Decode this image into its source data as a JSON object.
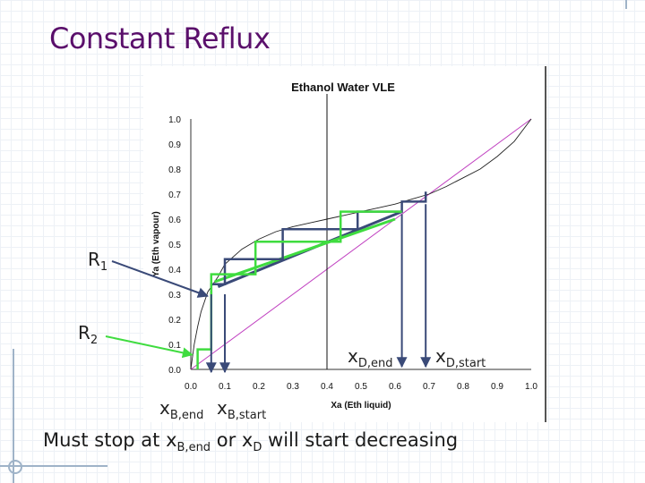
{
  "slide": {
    "title": "Constant Reflux",
    "footer": {
      "prefix": "Must stop at x",
      "sub1": "B,end",
      "middle": " or x",
      "sub2": "D",
      "suffix": " will start decreasing"
    }
  },
  "callouts": {
    "r1": {
      "base": "R",
      "sub": "1"
    },
    "r2": {
      "base": "R",
      "sub": "2"
    },
    "xd_end": {
      "base": "x",
      "sub": "D,end"
    },
    "xd_start": {
      "base": "x",
      "sub": "D,start"
    },
    "xb_end": {
      "base": "x",
      "sub": "B,end"
    },
    "xb_start": {
      "base": "x",
      "sub": "B,start"
    }
  },
  "chart_data": {
    "type": "line",
    "title": "Ethanol Water VLE",
    "xlabel": "Xa (Eth liquid)",
    "ylabel": "Ya (Eth vapour)",
    "xlim": [
      0,
      1
    ],
    "ylim": [
      0,
      1
    ],
    "xticks": [
      "0.0",
      "0.1",
      "0.2",
      "0.3",
      "0.4",
      "0.5",
      "0.6",
      "0.7",
      "0.8",
      "0.9",
      "1.0"
    ],
    "yticks": [
      "0.0",
      "0.1",
      "0.2",
      "0.3",
      "0.4",
      "0.5",
      "0.6",
      "0.7",
      "0.8",
      "0.9",
      "1.0"
    ],
    "grid": false,
    "colors": {
      "equilibrium": "#222222",
      "diagonal": "#c040c0",
      "start": "#3a4a78",
      "end": "#3fdc3f",
      "arrow": "#3a4a78",
      "callout_green": "#3fdc3f"
    },
    "series": [
      {
        "x": [
          0.0,
          0.01,
          0.02,
          0.03,
          0.05,
          0.08,
          0.1,
          0.15,
          0.2,
          0.25,
          0.3,
          0.35,
          0.4,
          0.45,
          0.5,
          0.55,
          0.6,
          0.65,
          0.7,
          0.75,
          0.8,
          0.85,
          0.9,
          0.95,
          1.0
        ],
        "y": [
          0.0,
          0.1,
          0.17,
          0.23,
          0.31,
          0.37,
          0.42,
          0.48,
          0.52,
          0.55,
          0.57,
          0.585,
          0.6,
          0.615,
          0.63,
          0.645,
          0.66,
          0.68,
          0.7,
          0.73,
          0.765,
          0.8,
          0.85,
          0.91,
          1.0
        ]
      },
      {
        "x": [
          0,
          1
        ],
        "y": [
          0,
          1
        ]
      }
    ],
    "operating_lines": [
      {
        "x": [
          0.08,
          0.62
        ],
        "y": [
          0.33,
          0.63
        ]
      },
      {
        "x": [
          0.07,
          0.6
        ],
        "y": [
          0.35,
          0.6
        ]
      }
    ],
    "stages": [
      {
        "x": [
          0.69,
          0.69,
          0.62,
          0.62,
          0.49,
          0.49,
          0.27,
          0.27,
          0.1,
          0.1,
          0.06,
          0.06
        ],
        "y": [
          0.71,
          0.67,
          0.67,
          0.63,
          0.63,
          0.56,
          0.56,
          0.44,
          0.44,
          0.34,
          0.34,
          0.3
        ]
      },
      {
        "x": [
          0.62,
          0.62,
          0.44,
          0.44,
          0.19,
          0.19,
          0.06,
          0.06,
          0.02,
          0.02
        ],
        "y": [
          0.63,
          0.63,
          0.63,
          0.51,
          0.51,
          0.38,
          0.38,
          0.08,
          0.08,
          0.0
        ]
      }
    ],
    "markers": {
      "xd_start": 0.69,
      "xd_end": 0.62,
      "xb_start": 0.1,
      "xb_end": 0.06,
      "feed": 0.4
    },
    "r1_target": [
      0.06,
      0.3
    ],
    "r2_target": [
      0.02,
      0.08
    ]
  }
}
